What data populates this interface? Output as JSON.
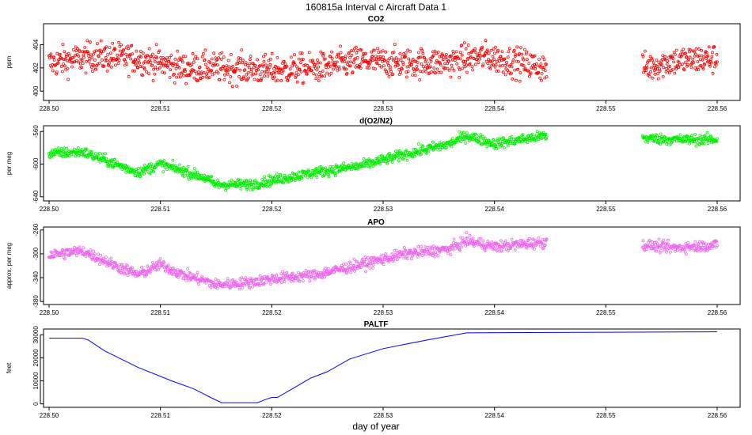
{
  "chart_data": {
    "type": "scatter",
    "title": "160815a   Interval c Aircraft Data 1",
    "xlabel": "day of year",
    "xlim": [
      228.5,
      228.56
    ],
    "xticks": [
      228.5,
      228.51,
      228.52,
      228.53,
      228.54,
      228.55,
      228.56
    ],
    "xtick_labels": [
      "228.50",
      "228.51",
      "228.52",
      "228.53",
      "228.54",
      "228.55",
      "228.56"
    ],
    "gap": [
      228.5447,
      228.5533
    ],
    "panels": [
      {
        "name": "co2",
        "title": "CO2",
        "type": "scatter",
        "ylabel": "ppm",
        "color": "#ff0000",
        "ylim": [
          399.2,
          405.8
        ],
        "yticks": [
          400,
          402,
          404
        ],
        "ytick_labels": [
          "400",
          "402",
          "404"
        ],
        "trend": [
          [
            228.5,
            402.4
          ],
          [
            228.504,
            403.0
          ],
          [
            228.508,
            402.8
          ],
          [
            228.512,
            402.0
          ],
          [
            228.516,
            402.0
          ],
          [
            228.52,
            401.8
          ],
          [
            228.524,
            402.0
          ],
          [
            228.528,
            402.6
          ],
          [
            228.532,
            402.4
          ],
          [
            228.536,
            402.5
          ],
          [
            228.539,
            403.0
          ],
          [
            228.5447,
            402.0
          ],
          [
            228.5533,
            402.0
          ],
          [
            228.556,
            402.6
          ],
          [
            228.56,
            402.8
          ]
        ],
        "noise": 0.9
      },
      {
        "name": "o2n2",
        "title": "d(O2/N2)",
        "type": "scatter",
        "ylabel": "per meg",
        "color": "#00ee00",
        "ylim": [
          -645,
          -553
        ],
        "yticks": [
          -640,
          -600,
          -560
        ],
        "ytick_labels": [
          "-640",
          "-600",
          "-560"
        ],
        "trend": [
          [
            228.5,
            -587
          ],
          [
            228.503,
            -585
          ],
          [
            228.506,
            -600
          ],
          [
            228.508,
            -610
          ],
          [
            228.51,
            -600
          ],
          [
            228.512,
            -608
          ],
          [
            228.514,
            -617
          ],
          [
            228.515,
            -625
          ],
          [
            228.518,
            -625
          ],
          [
            228.52,
            -620
          ],
          [
            228.524,
            -610
          ],
          [
            228.528,
            -602
          ],
          [
            228.532,
            -588
          ],
          [
            228.536,
            -575
          ],
          [
            228.5375,
            -565
          ],
          [
            228.54,
            -575
          ],
          [
            228.5447,
            -565
          ],
          [
            228.5533,
            -568
          ],
          [
            228.556,
            -570
          ],
          [
            228.56,
            -570
          ]
        ],
        "noise": 4.5
      },
      {
        "name": "apo",
        "title": "APO",
        "type": "scatter",
        "ylabel": "approx. per meg",
        "color": "#ee66ee",
        "ylim": [
          -385,
          -255
        ],
        "yticks": [
          -380,
          -340,
          -300,
          -260
        ],
        "ytick_labels": [
          "-380",
          "-340",
          "-300",
          "-260"
        ],
        "trend": [
          [
            228.5,
            -302
          ],
          [
            228.503,
            -295
          ],
          [
            228.506,
            -320
          ],
          [
            228.508,
            -335
          ],
          [
            228.51,
            -318
          ],
          [
            228.512,
            -335
          ],
          [
            228.514,
            -345
          ],
          [
            228.515,
            -352
          ],
          [
            228.518,
            -348
          ],
          [
            228.52,
            -342
          ],
          [
            228.524,
            -335
          ],
          [
            228.528,
            -318
          ],
          [
            228.532,
            -300
          ],
          [
            228.536,
            -292
          ],
          [
            228.5375,
            -278
          ],
          [
            228.54,
            -288
          ],
          [
            228.5447,
            -280
          ],
          [
            228.5533,
            -285
          ],
          [
            228.556,
            -290
          ],
          [
            228.56,
            -285
          ]
        ],
        "noise": 6.5
      },
      {
        "name": "paltf",
        "title": "PALTF",
        "type": "line",
        "ylabel": "feet",
        "color": "#0000ff",
        "ylim": [
          -1500,
          32500
        ],
        "yticks": [
          0,
          10000,
          20000,
          30000
        ],
        "ytick_labels": [
          "0",
          "10000",
          "20000",
          "30000"
        ],
        "x": [
          228.5,
          228.503,
          228.5035,
          228.505,
          228.508,
          228.511,
          228.513,
          228.5145,
          228.5155,
          228.5187,
          228.5195,
          228.52,
          228.5205,
          228.522,
          228.5235,
          228.525,
          228.527,
          228.53,
          228.534,
          228.5375,
          228.545,
          228.55,
          228.556,
          228.56
        ],
        "y": [
          28500,
          28500,
          27800,
          23000,
          15800,
          10000,
          6500,
          2800,
          500,
          500,
          2000,
          2800,
          2800,
          7000,
          11200,
          14000,
          19500,
          24000,
          27800,
          30800,
          31000,
          31100,
          31200,
          31300
        ]
      }
    ]
  }
}
